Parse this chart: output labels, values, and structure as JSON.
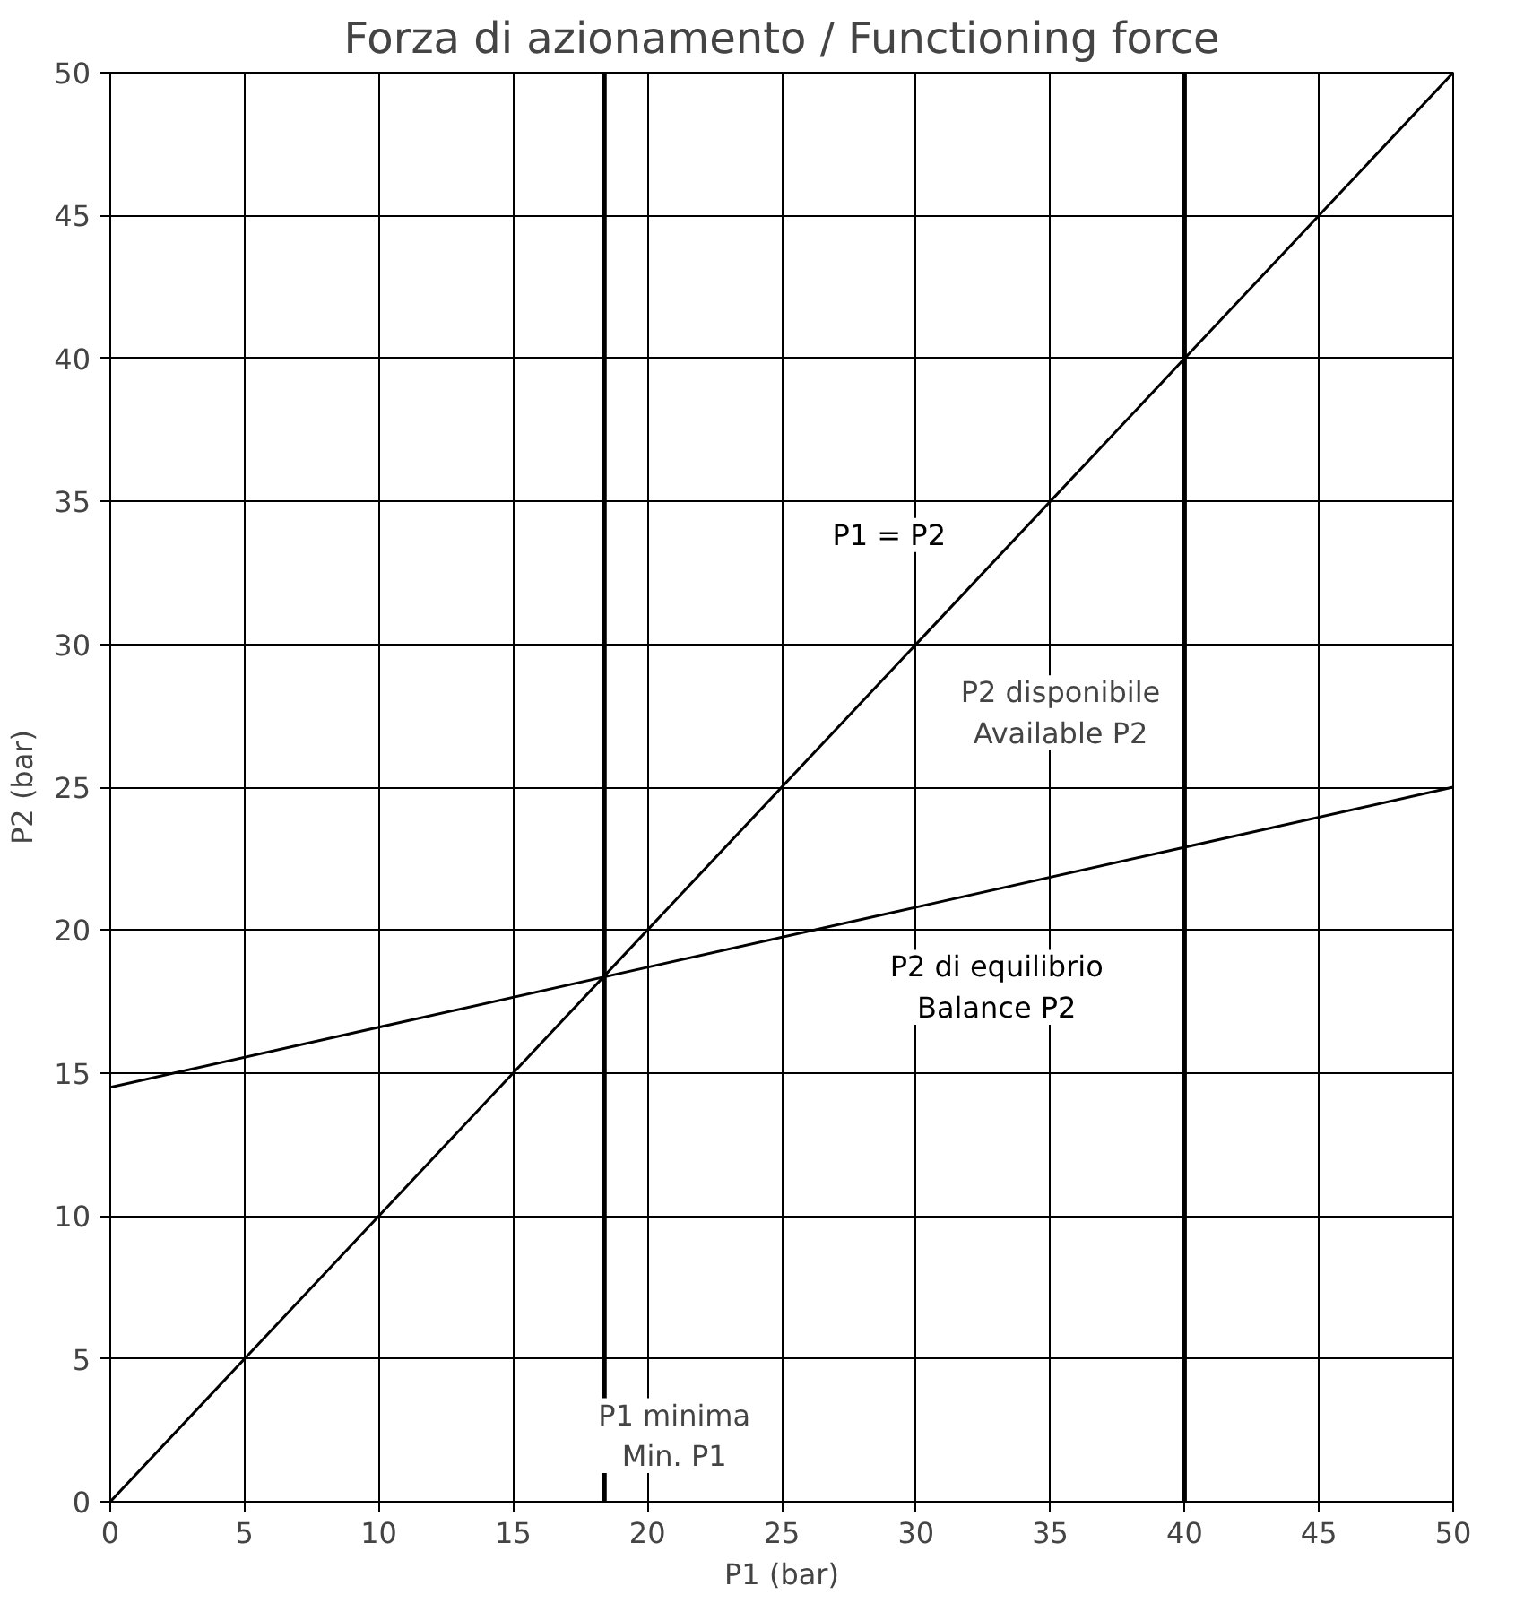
{
  "chart_data": {
    "type": "line",
    "title": "Forza di azionamento / Functioning force",
    "xlabel": "P1 (bar)",
    "ylabel": "P2 (bar)",
    "xlim": [
      0,
      50
    ],
    "ylim": [
      0,
      50
    ],
    "xticks": [
      0,
      5,
      10,
      15,
      20,
      25,
      30,
      35,
      40,
      45,
      50
    ],
    "yticks": [
      0,
      5,
      10,
      15,
      20,
      25,
      30,
      35,
      40,
      45,
      50
    ],
    "grid": true,
    "marker": "none",
    "line_style": "solid",
    "series": [
      {
        "name": "P1 = P2",
        "color": "#000000",
        "x": [
          0,
          10,
          20,
          30,
          40,
          50
        ],
        "values": [
          0,
          10,
          20,
          30,
          40,
          50
        ]
      },
      {
        "name": "P2 di equilibrio\nBalance P2",
        "color": "#000000",
        "x": [
          0,
          10,
          20,
          30,
          40,
          50
        ],
        "values": [
          14.5,
          16.6,
          18.7,
          20.8,
          22.9,
          25
        ]
      }
    ],
    "ref_lines": [
      {
        "axis": "x",
        "value": 18.4,
        "label": "P1 minima\nMin. P1",
        "color": "#000000"
      },
      {
        "axis": "x",
        "value": 40,
        "label": null,
        "color": "#000000"
      }
    ],
    "annotations": [
      "P2 disponibile\nAvailable P2"
    ]
  }
}
